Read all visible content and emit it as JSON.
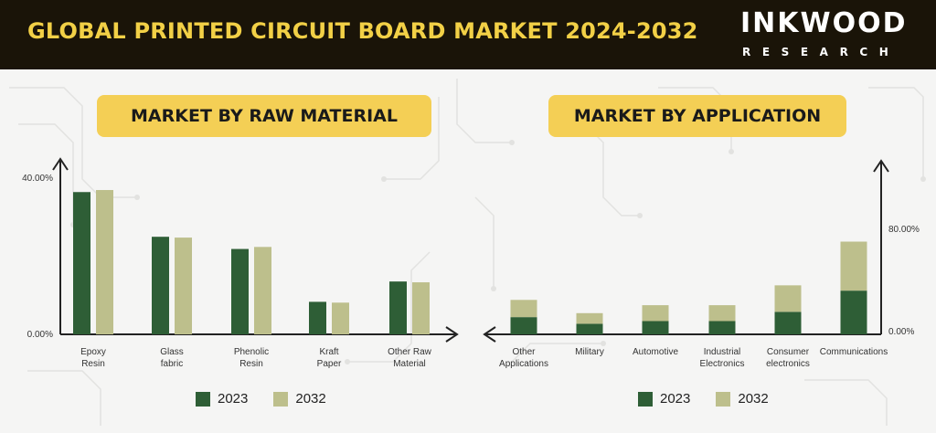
{
  "header": {
    "title": "GLOBAL PRINTED CIRCUIT BOARD MARKET 2024-2032",
    "brand_name": "INKWOOD",
    "brand_sub": "RESEARCH"
  },
  "colors": {
    "series_2023": "#2e5e36",
    "series_2032": "#bdbf8c",
    "accent": "#f4cf55",
    "header_bg": "#1a1408"
  },
  "chart_data": [
    {
      "type": "bar",
      "title": "MARKET BY RAW MATERIAL",
      "categories": [
        "Epoxy\nResin",
        "Glass\nfabric",
        "Phenolic\nResin",
        "Kraft\nPaper",
        "Other Raw\nMaterial"
      ],
      "series": [
        {
          "name": "2023",
          "values": [
            35,
            24,
            21,
            8,
            13
          ]
        },
        {
          "name": "2032",
          "values": [
            35.5,
            23.8,
            21.5,
            7.8,
            12.8
          ]
        }
      ],
      "yticks": [
        "0.00%",
        "40.00%"
      ],
      "ylim": [
        0,
        40
      ],
      "legend_position": "bottom"
    },
    {
      "type": "bar",
      "title": "MARKET BY APPLICATION",
      "stacked": true,
      "categories": [
        "Other\nApplications",
        "Military",
        "Automotive",
        "Industrial\nElectronics",
        "Consumer\nelectronics",
        "Communications"
      ],
      "series": [
        {
          "name": "2023",
          "values": [
            13,
            8,
            10,
            10,
            17,
            33
          ]
        },
        {
          "name": "2032",
          "values": [
            13,
            8,
            12,
            12,
            20,
            37
          ]
        }
      ],
      "yticks": [
        "0.00%",
        "80.00%"
      ],
      "ylim": [
        0,
        80
      ],
      "legend_position": "bottom"
    }
  ]
}
